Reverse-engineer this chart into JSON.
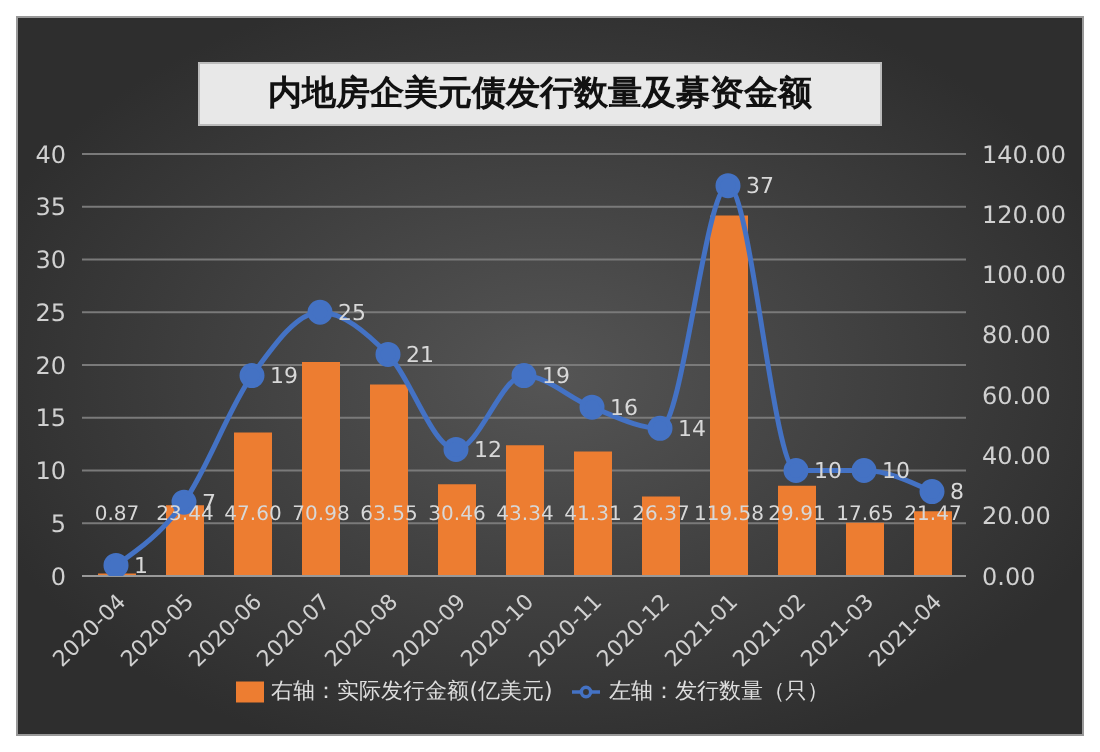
{
  "chart_data": {
    "type": "bar",
    "title": "内地房企美元债发行数量及募资金额",
    "categories": [
      "2020-04",
      "2020-05",
      "2020-06",
      "2020-07",
      "2020-08",
      "2020-09",
      "2020-10",
      "2020-11",
      "2020-12",
      "2021-01",
      "2021-02",
      "2021-03",
      "2021-04"
    ],
    "series": [
      {
        "name": "右轴：实际发行金额(亿美元)",
        "axis": "y2",
        "color": "#ed7d31",
        "values": [
          0.87,
          23.44,
          47.6,
          70.98,
          63.55,
          30.46,
          43.34,
          41.31,
          26.37,
          119.58,
          29.91,
          17.65,
          21.47
        ],
        "value_labels": [
          "0.87",
          "23.44",
          "47.60",
          "70.98",
          "63.55",
          "30.46",
          "43.34",
          "41.31",
          "26.37",
          "119.58",
          "29.91",
          "17.65",
          "21.47"
        ]
      },
      {
        "name": "左轴：发行数量（只）",
        "type": "line",
        "color": "#4472c4",
        "marker": "circle",
        "values": [
          1,
          7,
          19,
          25,
          21,
          12,
          19,
          16,
          14,
          37,
          10,
          10,
          8
        ]
      }
    ],
    "ylim": [
      0,
      40
    ],
    "yticks": [
      0,
      5,
      10,
      15,
      20,
      25,
      30,
      35,
      40
    ],
    "y2lim": [
      0,
      140
    ],
    "y2ticks": [
      {
        "value": 0,
        "label": "0.00"
      },
      {
        "value": 20,
        "label": "20.00"
      },
      {
        "value": 40,
        "label": "40.00"
      },
      {
        "value": 60,
        "label": "60.00"
      },
      {
        "value": 80,
        "label": "80.00"
      },
      {
        "value": 100,
        "label": "100.00"
      },
      {
        "value": 120,
        "label": "120.00"
      },
      {
        "value": 140,
        "label": "140.00"
      }
    ],
    "grid": "y",
    "legend": "bottom",
    "data_labels": true
  }
}
